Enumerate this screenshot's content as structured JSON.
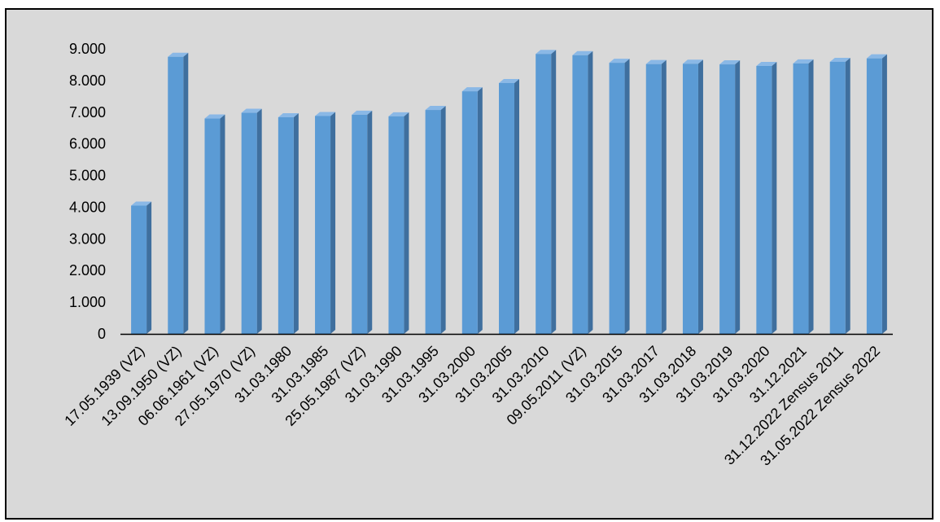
{
  "chart_data": {
    "type": "bar",
    "style": "3d-column",
    "categories": [
      "17.05.1939 (VZ)",
      "13.09.1950 (VZ)",
      "06.06.1961 (VZ)",
      "27.05.1970 (VZ)",
      "31.03.1980",
      "31.03.1985",
      "25.05.1987 (VZ)",
      "31.03.1990",
      "31.03.1995",
      "31.03.2000",
      "31.03.2005",
      "31.03.2010",
      "09.05.2011 (VZ)",
      "31.03.2015",
      "31.03.2017",
      "31.03.2018",
      "31.03.2019",
      "31.03.2020",
      "31.12.2021",
      "31.12.2022 Zensus 2011",
      "31.05.2022 Zensus 2022"
    ],
    "values": [
      4050,
      8750,
      6800,
      6980,
      6840,
      6880,
      6920,
      6870,
      7070,
      7660,
      7920,
      8840,
      8800,
      8560,
      8520,
      8530,
      8510,
      8460,
      8540,
      8590,
      8700
    ],
    "ylim": [
      0,
      9000
    ],
    "yticks": [
      "0",
      "1.000",
      "2.000",
      "3.000",
      "4.000",
      "5.000",
      "6.000",
      "7.000",
      "8.000",
      "9.000"
    ],
    "ytick_values": [
      0,
      1000,
      2000,
      3000,
      4000,
      5000,
      6000,
      7000,
      8000,
      9000
    ],
    "grid": false,
    "legend": "none",
    "colors": {
      "bar_front": "#5b9bd5",
      "bar_side": "#3f6f9e",
      "bar_top": "#8ab8e6",
      "background": "#d9d9d9",
      "axis": "#000000"
    }
  }
}
